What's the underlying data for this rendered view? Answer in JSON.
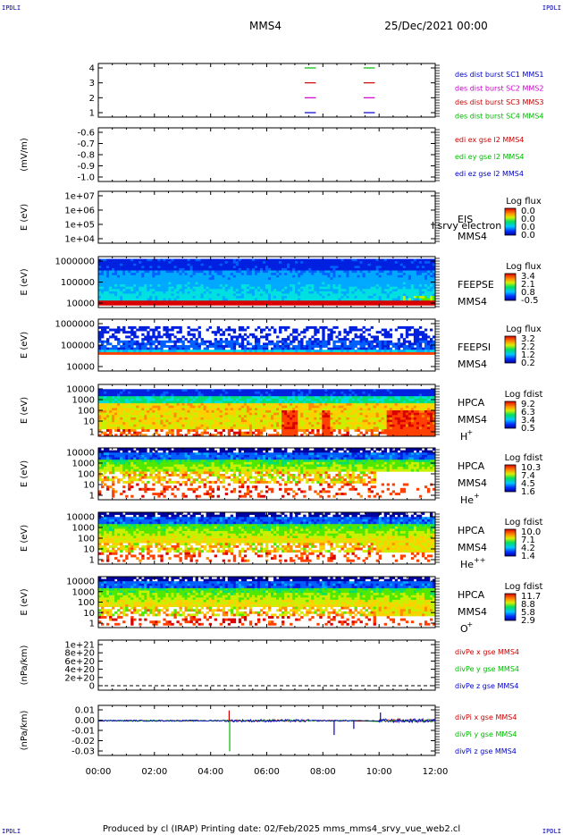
{
  "header": {
    "corner_label": "IPDLI",
    "spacecraft": "MMS4",
    "datetime": "25/Dec/2021 00:00"
  },
  "footer": {
    "text": "Produced by cl (IRAP)   Printing date: 02/Feb/2025   mms_mms4_srvy_vue_web2.cl"
  },
  "chart_data": {
    "type": "line",
    "x_ticks": [
      "00:00",
      "02:00",
      "04:00",
      "06:00",
      "08:00",
      "10:00",
      "12:00"
    ],
    "xlim_hours": [
      0,
      12
    ],
    "panels": [
      {
        "id": "burst",
        "type": "line",
        "yticks": [
          "4",
          "3",
          "2",
          "1"
        ],
        "ylim": [
          0.5,
          4.5
        ],
        "legend": [
          {
            "text": "des dist burst SC1 MMS1",
            "color": "#0000cc"
          },
          {
            "text": "des dist burst SC2 MMS2",
            "color": "#cc00cc"
          },
          {
            "text": "des dist burst SC3 MMS3",
            "color": "#cc0000"
          },
          {
            "text": "des dist burst SC4 MMS4",
            "color": "#00bb00"
          }
        ],
        "segments": [
          {
            "level": 4,
            "start_h": 7.35,
            "end_h": 7.75,
            "color": "#00bb00"
          },
          {
            "level": 3,
            "start_h": 7.35,
            "end_h": 7.75,
            "color": "#cc0000"
          },
          {
            "level": 2,
            "start_h": 7.35,
            "end_h": 7.75,
            "color": "#cc00cc"
          },
          {
            "level": 1,
            "start_h": 7.35,
            "end_h": 7.75,
            "color": "#0000cc"
          },
          {
            "level": 4,
            "start_h": 9.45,
            "end_h": 9.85,
            "color": "#00bb00"
          },
          {
            "level": 3,
            "start_h": 9.45,
            "end_h": 9.85,
            "color": "#cc0000"
          },
          {
            "level": 2,
            "start_h": 9.45,
            "end_h": 9.85,
            "color": "#cc00cc"
          },
          {
            "level": 1,
            "start_h": 9.45,
            "end_h": 9.85,
            "color": "#0000cc"
          }
        ]
      },
      {
        "id": "edi",
        "type": "line",
        "ylabel": "(mV/m)",
        "yticks": [
          "-0.6",
          "-0.7",
          "-0.8",
          "-0.9",
          "-1.0"
        ],
        "ylim": [
          -1.0,
          -0.6
        ],
        "legend": [
          {
            "text": "edi ex gse l2 MMS4",
            "color": "#cc0000"
          },
          {
            "text": "edi ey gse l2 MMS4",
            "color": "#00bb00"
          },
          {
            "text": "edi ez gse l2 MMS4",
            "color": "#0000cc"
          }
        ]
      },
      {
        "id": "eis",
        "type": "heatmap",
        "ylabel": "E (eV)",
        "yticks": [
          "1e+07",
          "1e+06",
          "1e+05",
          "1e+04"
        ],
        "instrument": [
          "EIS",
          "MMS4"
        ],
        "overlay_text": "l srvy electron to",
        "colorbar": {
          "title": "Log flux",
          "values": [
            "0.0",
            "0.0",
            "0.0",
            "0.0"
          ]
        },
        "empty": true
      },
      {
        "id": "feeps_e",
        "type": "heatmap",
        "ylabel": "E (eV)",
        "yticks": [
          "1000000",
          "100000",
          "10000"
        ],
        "instrument": [
          "FEEPSE",
          "MMS4"
        ],
        "colorbar": {
          "title": "Log flux",
          "values": [
            "3.4",
            "2.1",
            "0.8",
            "-0.5"
          ]
        },
        "profile": "feepse"
      },
      {
        "id": "feeps_i",
        "type": "heatmap",
        "ylabel": "E (eV)",
        "yticks": [
          "1000000",
          "100000",
          "10000"
        ],
        "instrument": [
          "FEEPSI",
          "MMS4"
        ],
        "colorbar": {
          "title": "Log flux",
          "values": [
            "3.2",
            "2.2",
            "1.2",
            "0.2"
          ]
        },
        "profile": "feepsi"
      },
      {
        "id": "hpca_h",
        "type": "heatmap",
        "ylabel": "E (eV)",
        "yticks": [
          "10000",
          "1000",
          "100",
          "10",
          "1"
        ],
        "instrument": [
          "HPCA",
          "MMS4"
        ],
        "species": {
          "base": "H",
          "sup": "+"
        },
        "colorbar": {
          "title": "Log fdist",
          "values": [
            "9.2",
            "6.3",
            "3.4",
            "0.5"
          ]
        },
        "profile": "h"
      },
      {
        "id": "hpca_he",
        "type": "heatmap",
        "ylabel": "E (eV)",
        "yticks": [
          "10000",
          "1000",
          "100",
          "10",
          "1"
        ],
        "instrument": [
          "HPCA",
          "MMS4"
        ],
        "species": {
          "base": "He",
          "sup": "+"
        },
        "colorbar": {
          "title": "Log fdist",
          "values": [
            "10.3",
            "7.4",
            "4.5",
            "1.6"
          ]
        },
        "profile": "he"
      },
      {
        "id": "hpca_hepp",
        "type": "heatmap",
        "ylabel": "E (eV)",
        "yticks": [
          "10000",
          "1000",
          "100",
          "10",
          "1"
        ],
        "instrument": [
          "HPCA",
          "MMS4"
        ],
        "species": {
          "base": "He",
          "sup": "++"
        },
        "colorbar": {
          "title": "Log fdist",
          "values": [
            "10.0",
            "7.1",
            "4.2",
            "1.4"
          ]
        },
        "profile": "hepp"
      },
      {
        "id": "hpca_o",
        "type": "heatmap",
        "ylabel": "E (eV)",
        "yticks": [
          "10000",
          "1000",
          "100",
          "10",
          "1"
        ],
        "instrument": [
          "HPCA",
          "MMS4"
        ],
        "species": {
          "base": "O",
          "sup": "+"
        },
        "colorbar": {
          "title": "Log fdist",
          "values": [
            "11.7",
            "8.8",
            "5.8",
            "2.9"
          ]
        },
        "profile": "o"
      },
      {
        "id": "divpe",
        "type": "line",
        "ylabel": "(nPa/km)",
        "yticks": [
          "1e+21",
          "8e+20",
          "6e+20",
          "4e+20",
          "2e+20",
          "0"
        ],
        "ylim": [
          -1e+19,
          1.05e+21
        ],
        "zero_line": true,
        "legend": [
          {
            "text": "divPe x gse MMS4",
            "color": "#cc0000"
          },
          {
            "text": "divPe y gse MMS4",
            "color": "#00bb00"
          },
          {
            "text": "divPe z gse MMS4",
            "color": "#0000cc"
          }
        ]
      },
      {
        "id": "divpi",
        "type": "line",
        "ylabel": "(nPa/km)",
        "yticks": [
          "0.01",
          "0.00",
          "-0.01",
          "-0.02",
          "-0.03"
        ],
        "ylim": [
          -0.034,
          0.015
        ],
        "legend": [
          {
            "text": "divPi x gse MMS4",
            "color": "#cc0000"
          },
          {
            "text": "divPi y gse MMS4",
            "color": "#00bb00"
          },
          {
            "text": "divPi z gse MMS4",
            "color": "#0000cc"
          }
        ],
        "gaps_h": [
          [
            9.12,
            9.95
          ]
        ],
        "spikes": [
          {
            "t_h": 4.68,
            "value": -0.03,
            "color": "#00bb00"
          },
          {
            "t_h": 4.66,
            "value": 0.01,
            "color": "#cc0000"
          },
          {
            "t_h": 8.4,
            "value": -0.014,
            "color": "#0000cc"
          },
          {
            "t_h": 9.1,
            "value": -0.008,
            "color": "#0000cc"
          },
          {
            "t_h": 10.05,
            "value": 0.008,
            "color": "#0000cc"
          }
        ]
      }
    ]
  }
}
